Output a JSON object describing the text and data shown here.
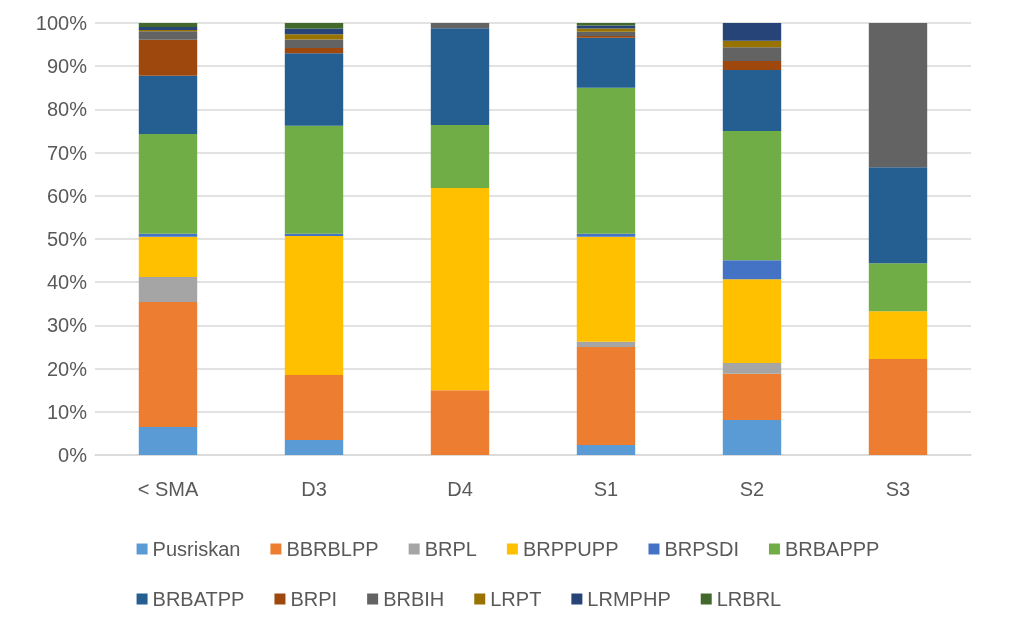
{
  "chart_data": {
    "type": "bar",
    "stacked": true,
    "categories": [
      "< SMA",
      "D3",
      "D4",
      "S1",
      "S2",
      "S3"
    ],
    "series": [
      {
        "name": "Pusriskan",
        "color": "#5b9bd5",
        "values": [
          6.5,
          3.5,
          0,
          2.3,
          8.1,
          0
        ]
      },
      {
        "name": "BBRBLPP",
        "color": "#ed7d31",
        "values": [
          28.9,
          15,
          15,
          22.7,
          10.7,
          22.2
        ]
      },
      {
        "name": "BRPL",
        "color": "#a5a5a5",
        "values": [
          5.8,
          0,
          0,
          1.2,
          2.5,
          0
        ]
      },
      {
        "name": "BRPPUPP",
        "color": "#ffc000",
        "values": [
          9.3,
          32.2,
          46.8,
          24.3,
          19.4,
          11.1
        ]
      },
      {
        "name": "BRPSDI",
        "color": "#4472c4",
        "values": [
          0.7,
          0.5,
          0,
          0.7,
          4.4,
          0
        ]
      },
      {
        "name": "BRBAPPP",
        "color": "#70ad47",
        "values": [
          23.1,
          25,
          14.6,
          33.8,
          29.9,
          11.1
        ]
      },
      {
        "name": "BRBATPP",
        "color": "#255e91",
        "values": [
          13.5,
          16.8,
          22.4,
          11.6,
          14.1,
          22.2
        ]
      },
      {
        "name": "BRPI",
        "color": "#9e480e",
        "values": [
          8.3,
          1.2,
          0,
          0.4,
          2.1,
          0
        ]
      },
      {
        "name": "BRBIH",
        "color": "#636363",
        "values": [
          2,
          2,
          1.2,
          1,
          3.2,
          33.4
        ]
      },
      {
        "name": "LRPT",
        "color": "#997300",
        "values": [
          0.3,
          1.2,
          0,
          0.7,
          1.5,
          0
        ]
      },
      {
        "name": "LRMPHP",
        "color": "#264478",
        "values": [
          0.7,
          1.3,
          0,
          0.7,
          4.1,
          0
        ]
      },
      {
        "name": "LRBRL",
        "color": "#43682b",
        "values": [
          0.9,
          1.3,
          0,
          0.6,
          0,
          0
        ]
      }
    ],
    "ylim": [
      0,
      100
    ],
    "yticks": [
      {
        "value": 0,
        "label": "0%"
      },
      {
        "value": 10,
        "label": "10%"
      },
      {
        "value": 20,
        "label": "20%"
      },
      {
        "value": 30,
        "label": "30%"
      },
      {
        "value": 40,
        "label": "40%"
      },
      {
        "value": 50,
        "label": "50%"
      },
      {
        "value": 60,
        "label": "60%"
      },
      {
        "value": 70,
        "label": "70%"
      },
      {
        "value": 80,
        "label": "80%"
      },
      {
        "value": 90,
        "label": "90%"
      },
      {
        "value": 100,
        "label": "100%"
      }
    ],
    "grid": "y",
    "legend": "bottom"
  }
}
